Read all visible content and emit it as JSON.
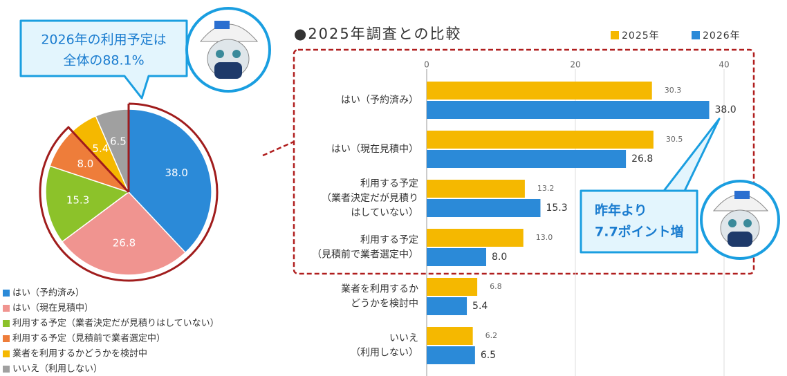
{
  "chart_data": [
    {
      "type": "pie",
      "annotation": [
        "2026年の利用予定は",
        "全体の88.1%"
      ],
      "categories": [
        "はい（予約済み）",
        "はい（現在見積中）",
        "利用する予定（業者決定だが見積りはしていない）",
        "利用する予定（見積前で業者選定中）",
        "業者を利用するかどうかを検討中",
        "いいえ（利用しない）"
      ],
      "values": [
        38.0,
        26.8,
        15.3,
        8.0,
        5.4,
        6.5
      ],
      "value_labels": [
        "38.0",
        "26.8",
        "15.3",
        "8.0",
        "5.4",
        "6.5"
      ],
      "colors": [
        "#2b8ad8",
        "#f09490",
        "#8cc22a",
        "#ee7d3a",
        "#f5b800",
        "#a0a0a0"
      ]
    },
    {
      "type": "bar",
      "title": "●2025年調査との比較",
      "annotation": [
        "昨年より",
        "7.7ポイント増"
      ],
      "categories": [
        [
          "はい（予約済み）"
        ],
        [
          "はい（現在見積中）"
        ],
        [
          "利用する予定",
          "（業者決定だが見積り",
          "はしていない）"
        ],
        [
          "利用する予定",
          "（見積前で業者選定中）"
        ],
        [
          "業者を利用するか",
          "どうかを検討中"
        ],
        [
          "いいえ",
          "（利用しない）"
        ]
      ],
      "series": [
        {
          "name": "2025年",
          "color": "#f5b800",
          "values": [
            30.3,
            30.5,
            13.2,
            13.0,
            6.8,
            6.2
          ],
          "value_labels": [
            "30.3",
            "30.5",
            "13.2",
            "13.0",
            "6.8",
            "6.2"
          ]
        },
        {
          "name": "2026年",
          "color": "#2b8ad8",
          "values": [
            38.0,
            26.8,
            15.3,
            8.0,
            5.4,
            6.5
          ],
          "value_labels": [
            "38.0",
            "26.8",
            "15.3",
            "8.0",
            "5.4",
            "6.5"
          ]
        }
      ],
      "xlim": [
        0,
        44
      ],
      "xticks": [
        0,
        20,
        40
      ],
      "grid": true
    }
  ]
}
